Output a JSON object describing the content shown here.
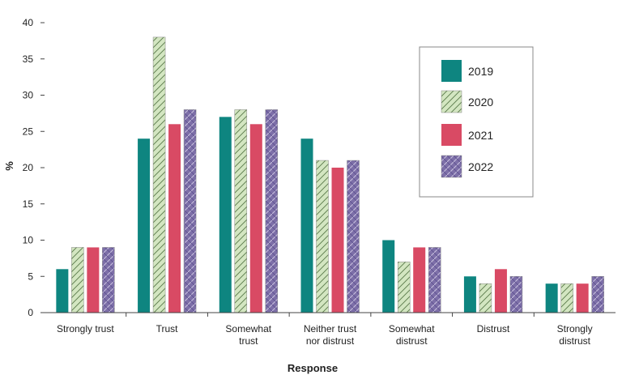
{
  "chart_data": {
    "type": "bar",
    "xlabel": "Response",
    "ylabel": "%",
    "ylim": [
      0,
      40
    ],
    "yticks": [
      0,
      5,
      10,
      15,
      20,
      25,
      30,
      35,
      40
    ],
    "grid": false,
    "legend_position": "top-right",
    "categories": [
      [
        "Strongly trust"
      ],
      [
        "Trust"
      ],
      [
        "Somewhat",
        "trust"
      ],
      [
        "Neither trust",
        "nor distrust"
      ],
      [
        "Somewhat",
        "distrust"
      ],
      [
        "Distrust"
      ],
      [
        "Strongly",
        "distrust"
      ]
    ],
    "series": [
      {
        "name": "2019",
        "color": "#0e8580",
        "pattern": "solid",
        "values": [
          6,
          24,
          27,
          24,
          10,
          5,
          4
        ]
      },
      {
        "name": "2020",
        "color": "#d3e6c1",
        "pattern": "hatch-diagonal",
        "values": [
          9,
          38,
          28,
          21,
          7,
          4,
          4
        ]
      },
      {
        "name": "2021",
        "color": "#d94a64",
        "pattern": "solid",
        "values": [
          9,
          26,
          26,
          20,
          9,
          6,
          4
        ]
      },
      {
        "name": "2022",
        "color": "#7d6fa8",
        "pattern": "chevron",
        "values": [
          9,
          28,
          28,
          21,
          9,
          5,
          5
        ]
      }
    ]
  }
}
